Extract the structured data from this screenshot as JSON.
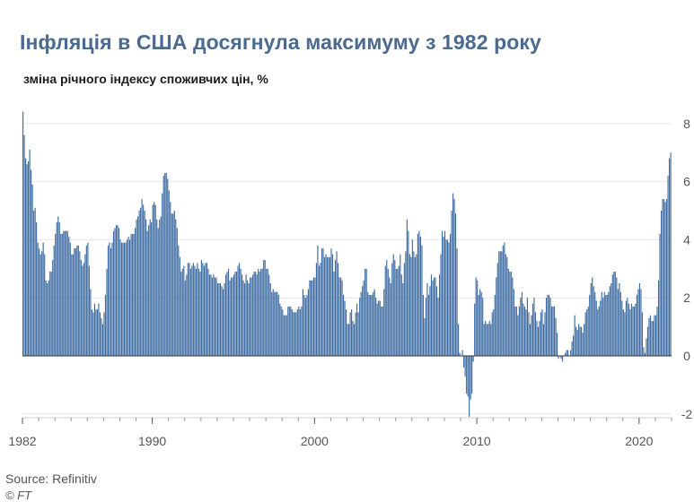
{
  "chart_data": {
    "type": "bar",
    "title": "Інфляція в США досягнула максимуму з 1982 року",
    "subtitle": "зміна річного індексу споживчих цін, %",
    "xlabel": "",
    "ylabel": "зміна річного індексу споживчих цін, %",
    "frequency": "monthly",
    "start_year": 1982,
    "end_year": 2021,
    "xlim": [
      1982,
      2022
    ],
    "ylim": [
      -2.2,
      8.4
    ],
    "y_ticks": [
      "8",
      "6",
      "4",
      "2",
      "0",
      "-2"
    ],
    "x_ticks": [
      "1982",
      "1990",
      "2000",
      "2010",
      "2020"
    ],
    "annual_profile": [
      {
        "year": 1982,
        "values": [
          8.4,
          7.6,
          6.8,
          6.6,
          6.7,
          7.1,
          6.4,
          5.9,
          5.0,
          5.1,
          4.6,
          3.9
        ]
      },
      {
        "year": 1983,
        "values": [
          3.7,
          3.5,
          3.6,
          3.9,
          3.5,
          2.6,
          2.5,
          2.6,
          2.9,
          2.9,
          3.3,
          3.8
        ]
      },
      {
        "year": 1984,
        "values": [
          4.2,
          4.6,
          4.8,
          4.6,
          4.2,
          4.2,
          4.3,
          4.3,
          4.3,
          4.3,
          4.1,
          3.9
        ]
      },
      {
        "year": 1985,
        "values": [
          3.5,
          3.5,
          3.7,
          3.7,
          3.8,
          3.8,
          3.6,
          3.3,
          3.1,
          3.2,
          3.5,
          3.8
        ]
      },
      {
        "year": 1986,
        "values": [
          3.9,
          3.1,
          2.3,
          1.6,
          1.5,
          1.8,
          1.6,
          1.6,
          1.8,
          1.5,
          1.3,
          1.1
        ]
      },
      {
        "year": 1987,
        "values": [
          1.5,
          2.1,
          3.0,
          3.8,
          3.9,
          3.7,
          3.9,
          4.3,
          4.4,
          4.5,
          4.5,
          4.4
        ]
      },
      {
        "year": 1988,
        "values": [
          4.0,
          3.9,
          3.9,
          3.9,
          3.9,
          4.0,
          4.1,
          4.0,
          4.2,
          4.2,
          4.2,
          4.4
        ]
      },
      {
        "year": 1989,
        "values": [
          4.7,
          4.8,
          5.0,
          5.1,
          5.4,
          5.2,
          5.0,
          4.7,
          4.3,
          4.5,
          4.7,
          4.6
        ]
      },
      {
        "year": 1990,
        "values": [
          5.2,
          5.3,
          5.2,
          4.7,
          4.4,
          4.7,
          4.8,
          5.6,
          6.2,
          6.3,
          6.3,
          6.1
        ]
      },
      {
        "year": 1991,
        "values": [
          5.7,
          5.3,
          4.9,
          4.9,
          5.0,
          4.7,
          4.4,
          3.8,
          3.4,
          2.9,
          3.0,
          3.1
        ]
      },
      {
        "year": 1992,
        "values": [
          2.6,
          2.8,
          3.2,
          3.2,
          3.0,
          3.1,
          3.2,
          3.1,
          3.0,
          3.2,
          3.0,
          2.9
        ]
      },
      {
        "year": 1993,
        "values": [
          3.3,
          3.2,
          3.1,
          3.2,
          3.2,
          3.0,
          2.8,
          2.8,
          2.7,
          2.8,
          2.7,
          2.7
        ]
      },
      {
        "year": 1994,
        "values": [
          2.5,
          2.5,
          2.5,
          2.4,
          2.3,
          2.5,
          2.8,
          2.9,
          3.0,
          2.6,
          2.7,
          2.7
        ]
      },
      {
        "year": 1995,
        "values": [
          2.8,
          2.9,
          2.9,
          3.1,
          3.2,
          3.0,
          2.8,
          2.6,
          2.5,
          2.8,
          2.6,
          2.5
        ]
      },
      {
        "year": 1996,
        "values": [
          2.7,
          2.7,
          2.8,
          2.9,
          2.9,
          2.8,
          3.0,
          2.9,
          3.0,
          3.0,
          3.3,
          3.3
        ]
      },
      {
        "year": 1997,
        "values": [
          3.0,
          3.0,
          2.8,
          2.5,
          2.2,
          2.3,
          2.2,
          2.2,
          2.2,
          2.1,
          1.8,
          1.7
        ]
      },
      {
        "year": 1998,
        "values": [
          1.6,
          1.4,
          1.4,
          1.4,
          1.7,
          1.7,
          1.7,
          1.6,
          1.5,
          1.5,
          1.5,
          1.6
        ]
      },
      {
        "year": 1999,
        "values": [
          1.7,
          1.6,
          1.7,
          2.3,
          2.1,
          2.0,
          2.1,
          2.3,
          2.6,
          2.6,
          2.6,
          2.7
        ]
      },
      {
        "year": 2000,
        "values": [
          2.7,
          3.2,
          3.8,
          3.1,
          3.2,
          3.7,
          3.7,
          3.4,
          3.5,
          3.4,
          3.4,
          3.4
        ]
      },
      {
        "year": 2001,
        "values": [
          3.7,
          3.5,
          2.9,
          3.3,
          3.6,
          3.2,
          2.7,
          2.7,
          2.6,
          2.1,
          1.9,
          1.6
        ]
      },
      {
        "year": 2002,
        "values": [
          1.1,
          1.1,
          1.5,
          1.6,
          1.2,
          1.1,
          1.5,
          1.8,
          1.5,
          2.0,
          2.2,
          2.4
        ]
      },
      {
        "year": 2003,
        "values": [
          2.6,
          3.0,
          3.0,
          2.2,
          2.1,
          2.1,
          2.1,
          2.2,
          2.3,
          2.0,
          1.8,
          1.9
        ]
      },
      {
        "year": 2004,
        "values": [
          1.9,
          1.7,
          1.7,
          2.3,
          3.1,
          3.3,
          3.0,
          2.7,
          2.5,
          3.2,
          3.5,
          3.3
        ]
      },
      {
        "year": 2005,
        "values": [
          3.0,
          3.0,
          3.1,
          3.5,
          2.8,
          2.5,
          3.2,
          3.6,
          4.7,
          4.3,
          3.5,
          3.4
        ]
      },
      {
        "year": 2006,
        "values": [
          4.0,
          3.6,
          3.4,
          3.5,
          4.2,
          4.3,
          4.1,
          3.8,
          2.1,
          1.3,
          2.0,
          2.5
        ]
      },
      {
        "year": 2007,
        "values": [
          2.1,
          2.4,
          2.8,
          2.6,
          2.7,
          2.7,
          2.4,
          2.0,
          2.8,
          3.5,
          4.3,
          4.1
        ]
      },
      {
        "year": 2008,
        "values": [
          4.3,
          4.0,
          4.0,
          3.9,
          4.2,
          5.0,
          5.6,
          5.4,
          4.9,
          3.7,
          1.1,
          0.1
        ]
      },
      {
        "year": 2009,
        "values": [
          0.0,
          0.2,
          -0.4,
          -0.7,
          -1.3,
          -1.4,
          -2.1,
          -1.5,
          -1.3,
          -0.2,
          1.8,
          2.7
        ]
      },
      {
        "year": 2010,
        "values": [
          2.6,
          2.1,
          2.3,
          2.2,
          2.0,
          1.1,
          1.2,
          1.1,
          1.1,
          1.2,
          1.1,
          1.5
        ]
      },
      {
        "year": 2011,
        "values": [
          1.6,
          2.1,
          2.7,
          3.2,
          3.6,
          3.6,
          3.6,
          3.8,
          3.9,
          3.5,
          3.4,
          3.0
        ]
      },
      {
        "year": 2012,
        "values": [
          2.9,
          2.9,
          2.7,
          2.3,
          1.7,
          1.7,
          1.4,
          1.7,
          2.0,
          2.2,
          1.8,
          1.7
        ]
      },
      {
        "year": 2013,
        "values": [
          1.6,
          2.0,
          1.5,
          1.1,
          1.4,
          1.8,
          2.0,
          1.5,
          1.2,
          1.0,
          1.2,
          1.5
        ]
      },
      {
        "year": 2014,
        "values": [
          1.6,
          1.1,
          1.5,
          2.0,
          2.1,
          2.1,
          2.0,
          1.7,
          1.7,
          1.7,
          1.3,
          0.8
        ]
      },
      {
        "year": 2015,
        "values": [
          -0.1,
          0.0,
          -0.1,
          -0.2,
          0.0,
          0.1,
          0.2,
          0.2,
          0.0,
          0.2,
          0.5,
          0.7
        ]
      },
      {
        "year": 2016,
        "values": [
          1.4,
          1.0,
          0.9,
          1.1,
          1.0,
          1.0,
          0.8,
          1.1,
          1.5,
          1.6,
          1.7,
          2.1
        ]
      },
      {
        "year": 2017,
        "values": [
          2.5,
          2.7,
          2.4,
          2.2,
          1.9,
          1.6,
          1.7,
          1.9,
          2.2,
          2.0,
          2.2,
          2.1
        ]
      },
      {
        "year": 2018,
        "values": [
          2.1,
          2.2,
          2.4,
          2.5,
          2.8,
          2.9,
          2.9,
          2.7,
          2.3,
          2.5,
          2.2,
          1.9
        ]
      },
      {
        "year": 2019,
        "values": [
          1.6,
          1.5,
          1.9,
          2.0,
          1.8,
          1.6,
          1.8,
          1.7,
          1.7,
          1.8,
          2.1,
          2.3
        ]
      },
      {
        "year": 2020,
        "values": [
          2.5,
          2.3,
          1.5,
          0.3,
          0.1,
          0.6,
          1.0,
          1.3,
          1.4,
          1.2,
          1.2,
          1.4
        ]
      },
      {
        "year": 2021,
        "values": [
          1.4,
          1.7,
          2.6,
          4.2,
          5.0,
          5.4,
          5.4,
          5.3,
          5.4,
          6.2,
          6.8,
          7.0
        ]
      }
    ]
  },
  "footer": {
    "source": "Source: Refinitiv",
    "copyright": "© FT"
  }
}
